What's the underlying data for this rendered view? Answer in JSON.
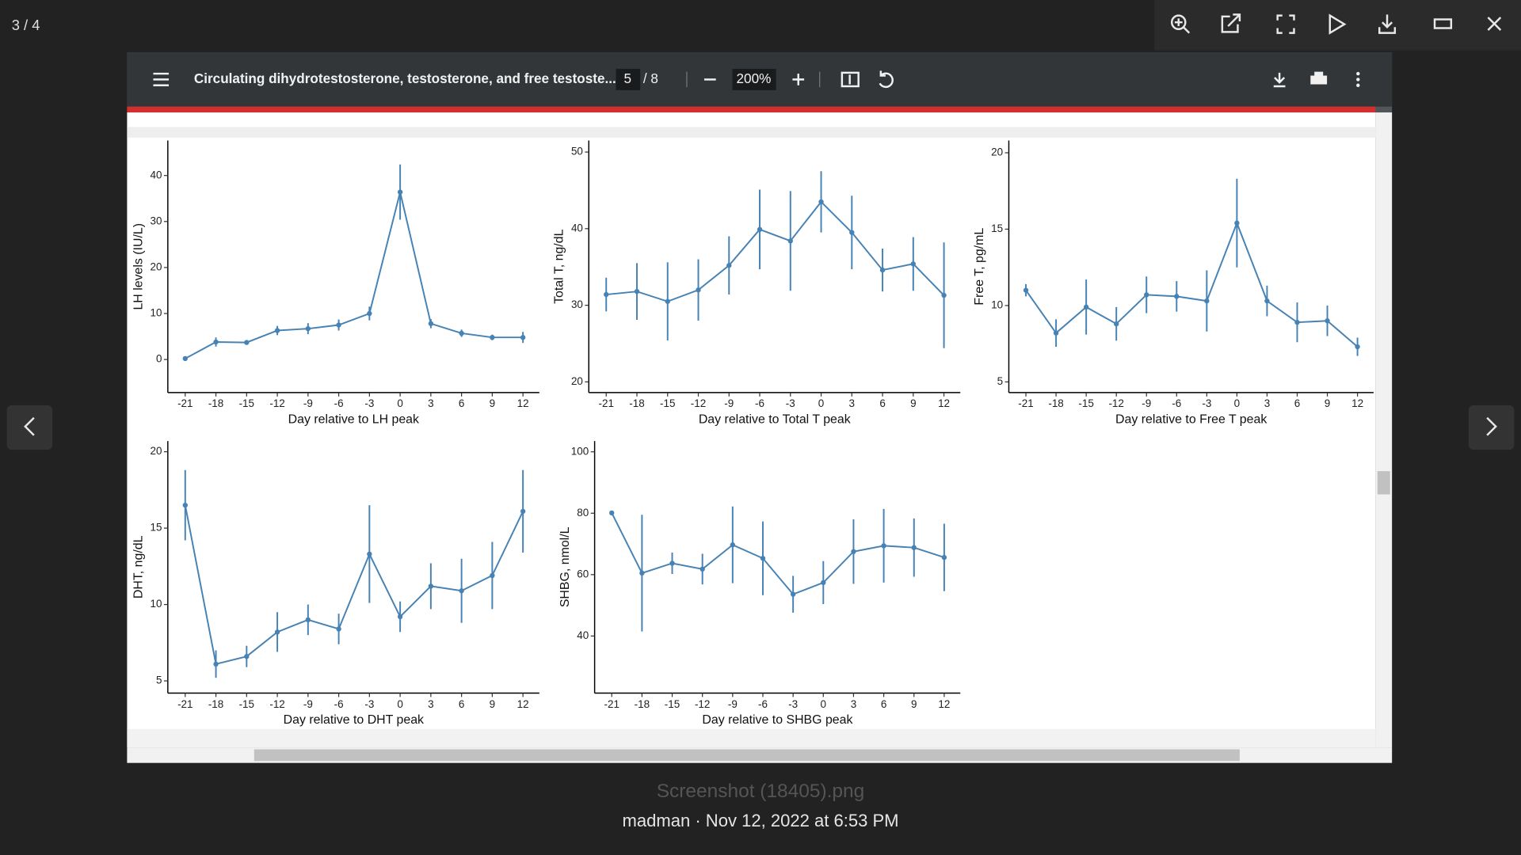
{
  "viewer": {
    "counter": "3 / 4",
    "file_name": "Screenshot (18405).png",
    "caption": "madman · Nov 12, 2022 at 6:53 PM"
  },
  "pdf_toolbar": {
    "title": "Circulating dihydrotestosterone, testosterone, and free testoste...",
    "page": "5",
    "page_total": "/ 8",
    "zoom": "200%"
  },
  "chart_data": [
    {
      "type": "line",
      "y_label": "LH levels (IU/L)",
      "x_label": "Day relative to LH peak",
      "color": "#4682b4",
      "x": [
        -21,
        -18,
        -15,
        -12,
        -9,
        -6,
        -3,
        0,
        3,
        6,
        9,
        12
      ],
      "values": [
        0.2,
        3.8,
        3.7,
        6.3,
        6.7,
        7.5,
        10,
        36.4,
        7.8,
        5.7,
        4.8,
        4.8
      ],
      "errors": [
        0.3,
        1,
        0.5,
        1,
        1.2,
        1.2,
        1.5,
        6,
        1,
        0.8,
        0.6,
        1.2
      ],
      "xlim": [
        -22.7,
        13.6
      ],
      "xticks": [
        -21,
        -18,
        -15,
        -12,
        -9,
        -6,
        -3,
        0,
        3,
        6,
        9,
        12
      ],
      "ylim": [
        -7.2,
        47.6
      ],
      "yticks": [
        0,
        10,
        20,
        30,
        40
      ]
    },
    {
      "type": "line",
      "y_label": "Total T, ng/dL",
      "x_label": "Day relative to Total T peak",
      "color": "#4682b4",
      "x": [
        -21,
        -18,
        -15,
        -12,
        -9,
        -6,
        -3,
        0,
        3,
        6,
        9,
        12
      ],
      "values": [
        31.4,
        31.8,
        30.5,
        32,
        35.2,
        39.9,
        38.4,
        43.5,
        39.5,
        34.6,
        35.4,
        31.3
      ],
      "errors": [
        2.2,
        3.7,
        5.1,
        4,
        3.8,
        5.2,
        6.5,
        4,
        4.8,
        2.8,
        3.5,
        6.9
      ],
      "xlim": [
        -22.7,
        13.6
      ],
      "xticks": [
        -21,
        -18,
        -15,
        -12,
        -9,
        -6,
        -3,
        0,
        3,
        6,
        9,
        12
      ],
      "ylim": [
        18.6,
        51.5
      ],
      "yticks": [
        20,
        30,
        40,
        50
      ]
    },
    {
      "type": "line",
      "y_label": "Free T, pg/mL",
      "x_label": "Day relative to Free T peak",
      "color": "#4682b4",
      "x": [
        -21,
        -18,
        -15,
        -12,
        -9,
        -6,
        -3,
        0,
        3,
        6,
        9,
        12
      ],
      "values": [
        11,
        8.2,
        9.9,
        8.8,
        10.7,
        10.6,
        10.3,
        15.4,
        10.3,
        8.9,
        9,
        7.3
      ],
      "errors": [
        0.4,
        0.9,
        1.8,
        1.1,
        1.2,
        1,
        2,
        2.9,
        1,
        1.3,
        1,
        0.6
      ],
      "xlim": [
        -22.7,
        13.6
      ],
      "xticks": [
        -21,
        -18,
        -15,
        -12,
        -9,
        -6,
        -3,
        0,
        3,
        6,
        9,
        12
      ],
      "ylim": [
        4.3,
        20.8
      ],
      "yticks": [
        5,
        10,
        15,
        20
      ]
    },
    {
      "type": "line",
      "y_label": "DHT, ng/dL",
      "x_label": "Day relative to DHT peak",
      "color": "#4682b4",
      "x": [
        -21,
        -18,
        -15,
        -12,
        -9,
        -6,
        -3,
        0,
        3,
        6,
        9,
        12
      ],
      "values": [
        16.5,
        6.1,
        6.6,
        8.2,
        9,
        8.4,
        13.3,
        9.2,
        11.2,
        10.9,
        11.9,
        16.1
      ],
      "errors": [
        2.3,
        0.9,
        0.7,
        1.3,
        1,
        1,
        3.2,
        1,
        1.5,
        2.1,
        2.2,
        2.7
      ],
      "xlim": [
        -22.7,
        13.6
      ],
      "xticks": [
        -21,
        -18,
        -15,
        -12,
        -9,
        -6,
        -3,
        0,
        3,
        6,
        9,
        12
      ],
      "ylim": [
        4.2,
        20.7
      ],
      "yticks": [
        5,
        10,
        15,
        20
      ]
    },
    {
      "type": "line",
      "y_label": "SHBG, nmol/L",
      "x_label": "Day relative to SHBG peak",
      "color": "#4682b4",
      "x": [
        -21,
        -18,
        -15,
        -12,
        -9,
        -6,
        -3,
        0,
        3,
        6,
        9,
        12
      ],
      "values": [
        80.1,
        60.5,
        63.7,
        61.8,
        69.7,
        65.3,
        53.6,
        57.4,
        67.5,
        69.4,
        68.8,
        65.6
      ],
      "errors": [
        0,
        19,
        3.5,
        5,
        12.5,
        12,
        6,
        7,
        10.5,
        12,
        9.5,
        11
      ],
      "xlim": [
        -22.7,
        13.6
      ],
      "xticks": [
        -21,
        -18,
        -15,
        -12,
        -9,
        -6,
        -3,
        0,
        3,
        6,
        9,
        12
      ],
      "ylim": [
        21.4,
        103.5
      ],
      "yticks": [
        40,
        60,
        80,
        100
      ]
    }
  ]
}
